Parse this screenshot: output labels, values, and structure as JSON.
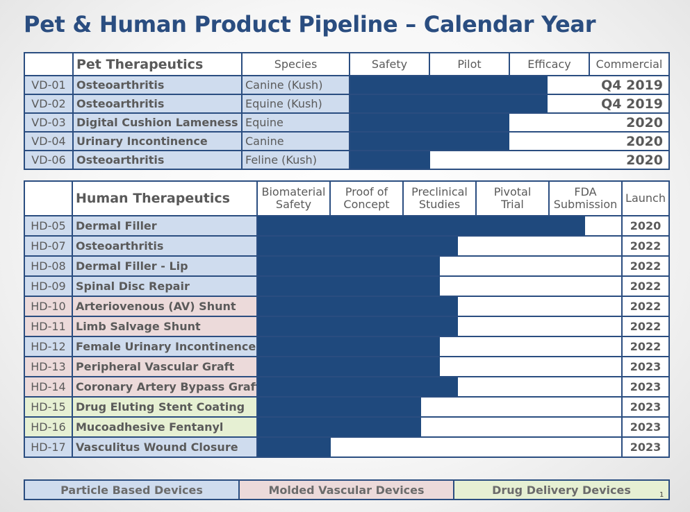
{
  "title": "Pet & Human Product Pipeline – Calendar Year",
  "colors": {
    "bar": "#1f497d",
    "border": "#2a4d80",
    "particle": "#cfdcee",
    "molded": "#ecdada",
    "drug": "#e6f0d3"
  },
  "pet": {
    "heading": "Pet Therapeutics",
    "stages": [
      "Species",
      "Safety",
      "Pilot",
      "Efficacy",
      "Commercial"
    ],
    "rows": [
      {
        "code": "VD-01",
        "name": "Osteoarthritis",
        "species": "Canine (Kush)",
        "progress": 0.62,
        "date": "Q4 2019"
      },
      {
        "code": "VD-02",
        "name": "Osteoarthritis",
        "species": "Equine (Kush)",
        "progress": 0.62,
        "date": "Q4 2019"
      },
      {
        "code": "VD-03",
        "name": "Digital Cushion Lameness",
        "species": "Equine",
        "progress": 0.5,
        "date": "2020"
      },
      {
        "code": "VD-04",
        "name": "Urinary Incontinence",
        "species": "Canine",
        "progress": 0.5,
        "date": "2020"
      },
      {
        "code": "VD-06",
        "name": "Osteoarthritis",
        "species": "Feline (Kush)",
        "progress": 0.25,
        "date": "2020"
      }
    ]
  },
  "human": {
    "heading": "Human Therapeutics",
    "stages": [
      [
        "Biomaterial",
        "Safety"
      ],
      [
        "Proof of",
        "Concept"
      ],
      [
        "Preclinical",
        "Studies"
      ],
      [
        "Pivotal",
        "Trial"
      ],
      [
        "FDA",
        "Submission"
      ],
      [
        "Launch"
      ]
    ],
    "rows": [
      {
        "code": "HD-05",
        "name": "Dermal Filler",
        "category": "particle",
        "progress": 0.9,
        "launch": "2020"
      },
      {
        "code": "HD-07",
        "name": "Osteoarthritis",
        "category": "particle",
        "progress": 0.55,
        "launch": "2022"
      },
      {
        "code": "HD-08",
        "name": "Dermal Filler - Lip",
        "category": "particle",
        "progress": 0.5,
        "launch": "2022"
      },
      {
        "code": "HD-09",
        "name": "Spinal Disc Repair",
        "category": "particle",
        "progress": 0.5,
        "launch": "2022"
      },
      {
        "code": "HD-10",
        "name": "Arteriovenous (AV) Shunt",
        "category": "molded",
        "progress": 0.55,
        "launch": "2022"
      },
      {
        "code": "HD-11",
        "name": "Limb Salvage Shunt",
        "category": "molded",
        "progress": 0.55,
        "launch": "2022"
      },
      {
        "code": "HD-12",
        "name": "Female Urinary Incontinence",
        "category": "particle",
        "progress": 0.5,
        "launch": "2022"
      },
      {
        "code": "HD-13",
        "name": "Peripheral Vascular Graft",
        "category": "molded",
        "progress": 0.5,
        "launch": "2023"
      },
      {
        "code": "HD-14",
        "name": "Coronary Artery Bypass Graft",
        "category": "molded",
        "progress": 0.55,
        "launch": "2023"
      },
      {
        "code": "HD-15",
        "name": "Drug Eluting Stent Coating",
        "category": "drug",
        "progress": 0.45,
        "launch": "2023"
      },
      {
        "code": "HD-16",
        "name": "Mucoadhesive Fentanyl",
        "category": "drug",
        "progress": 0.45,
        "launch": "2023"
      },
      {
        "code": "HD-17",
        "name": "Vasculitus Wound Closure",
        "category": "particle",
        "progress": 0.2,
        "launch": "2023"
      }
    ]
  },
  "legend": [
    "Particle Based Devices",
    "Molded Vascular Devices",
    "Drug Delivery Devices"
  ],
  "page_number": "1"
}
